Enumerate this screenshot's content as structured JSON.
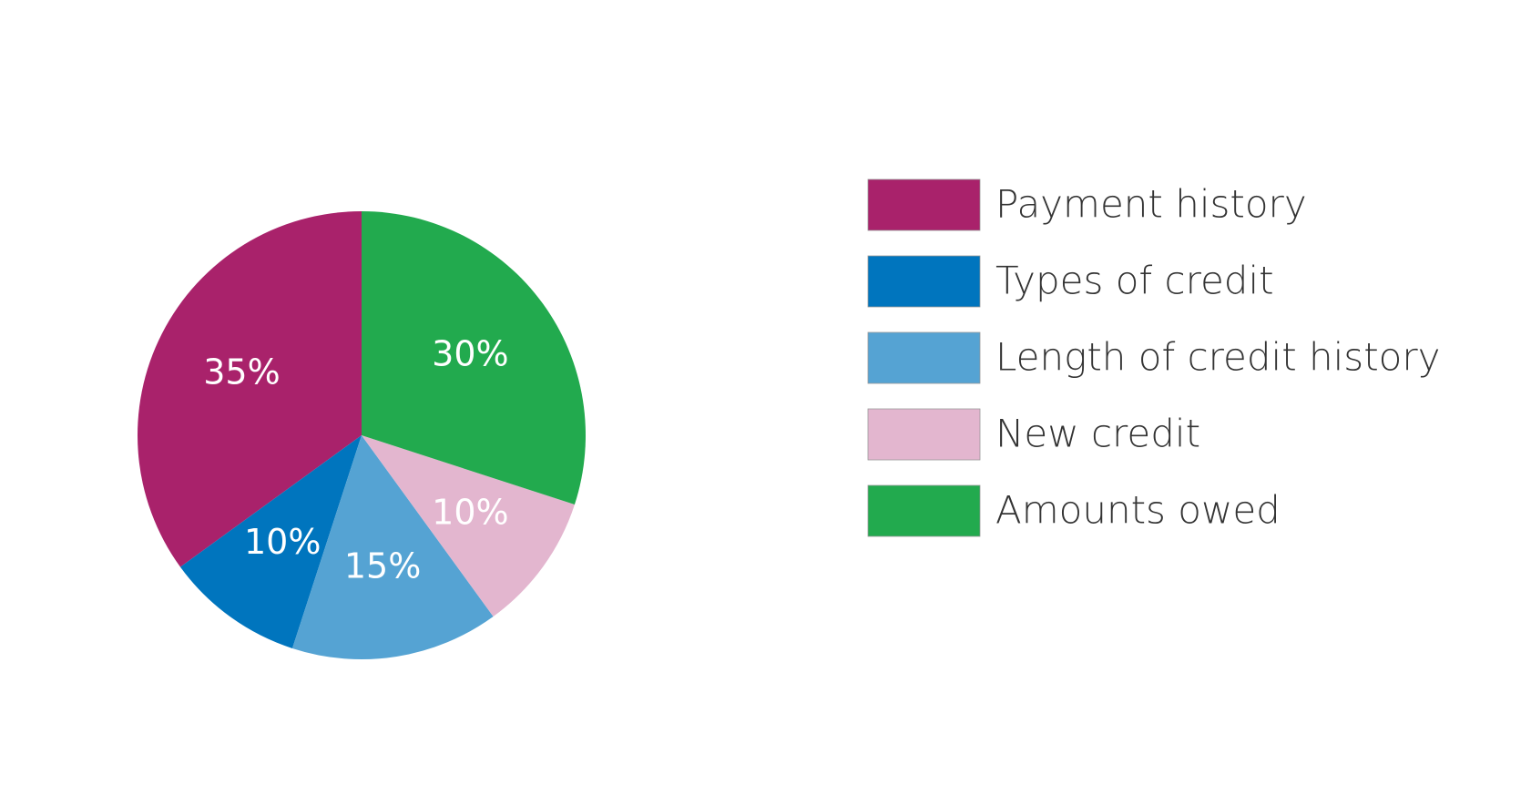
{
  "chart_data": {
    "type": "pie",
    "categories": [
      "Payment history",
      "Types of credit",
      "Length of credit history",
      "New credit",
      "Amounts owed"
    ],
    "values": [
      35,
      10,
      15,
      10,
      30
    ],
    "value_labels": [
      "35%",
      "10%",
      "15%",
      "10%",
      "30%"
    ],
    "colors": [
      "#a9226b",
      "#0075be",
      "#55a3d3",
      "#e3b6cf",
      "#22aa4e"
    ],
    "legend": "right"
  }
}
